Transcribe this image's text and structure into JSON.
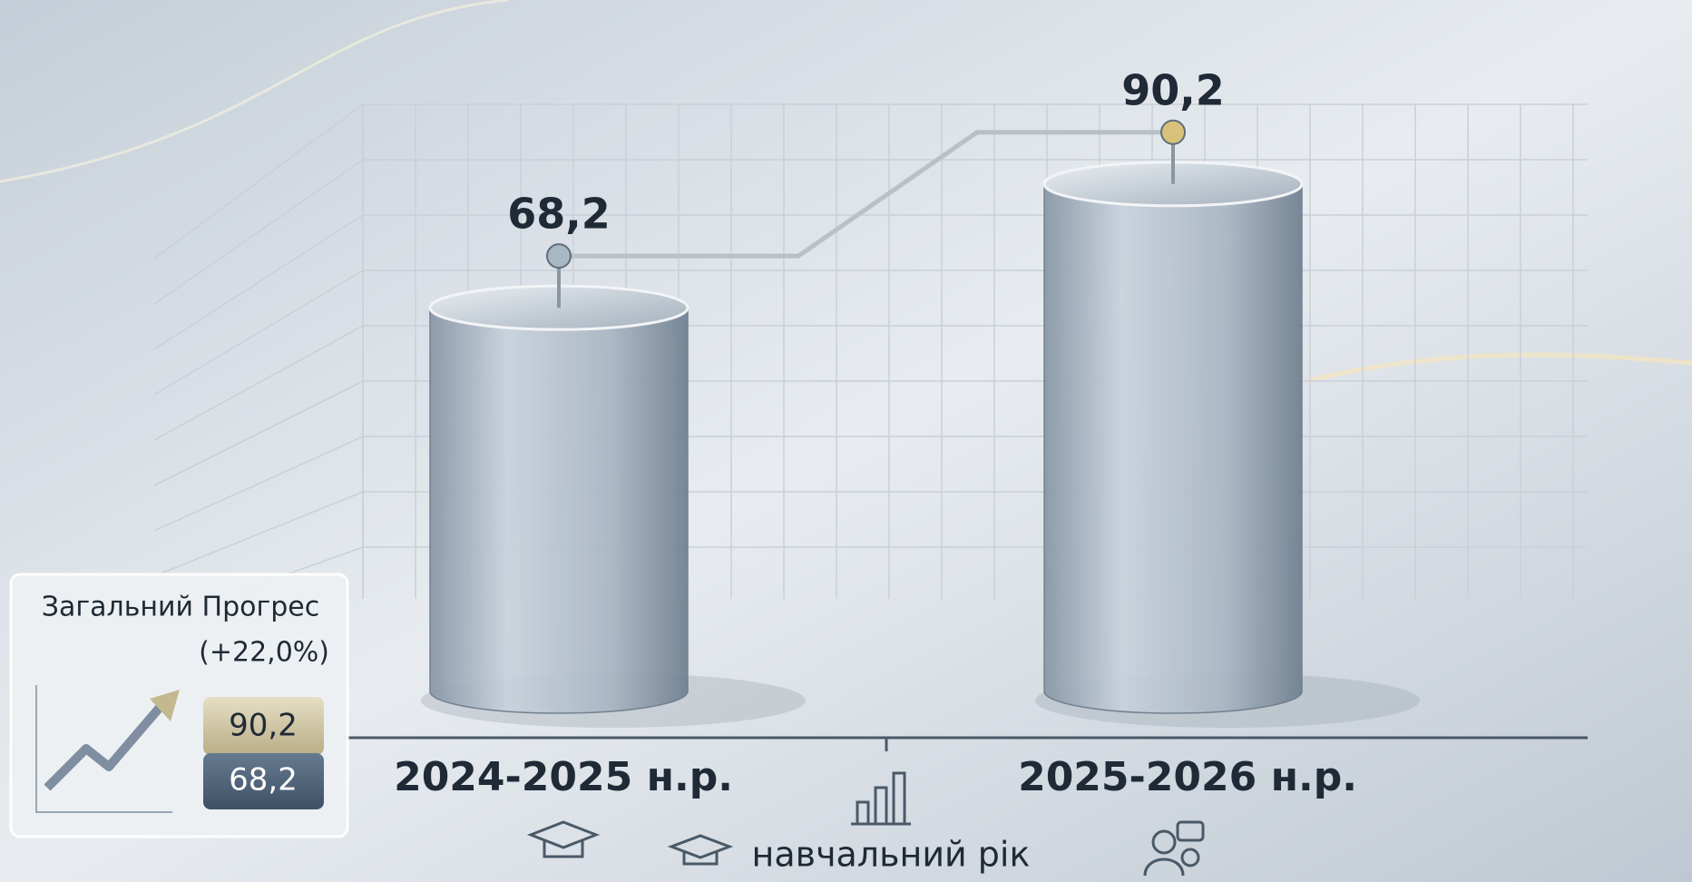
{
  "chart_data": {
    "type": "bar",
    "categories": [
      "2024-2025 н.р.",
      "2025-2026 н.р."
    ],
    "values": [
      68.2,
      90.2
    ],
    "value_labels": [
      "68,2",
      "90,2"
    ],
    "x_label": "навчальний рік",
    "color": "#8e9cab",
    "inset": {
      "title": "Загальний Прогрес",
      "change": "(+22,0%)",
      "current": "90,2",
      "previous": "68,2"
    }
  }
}
